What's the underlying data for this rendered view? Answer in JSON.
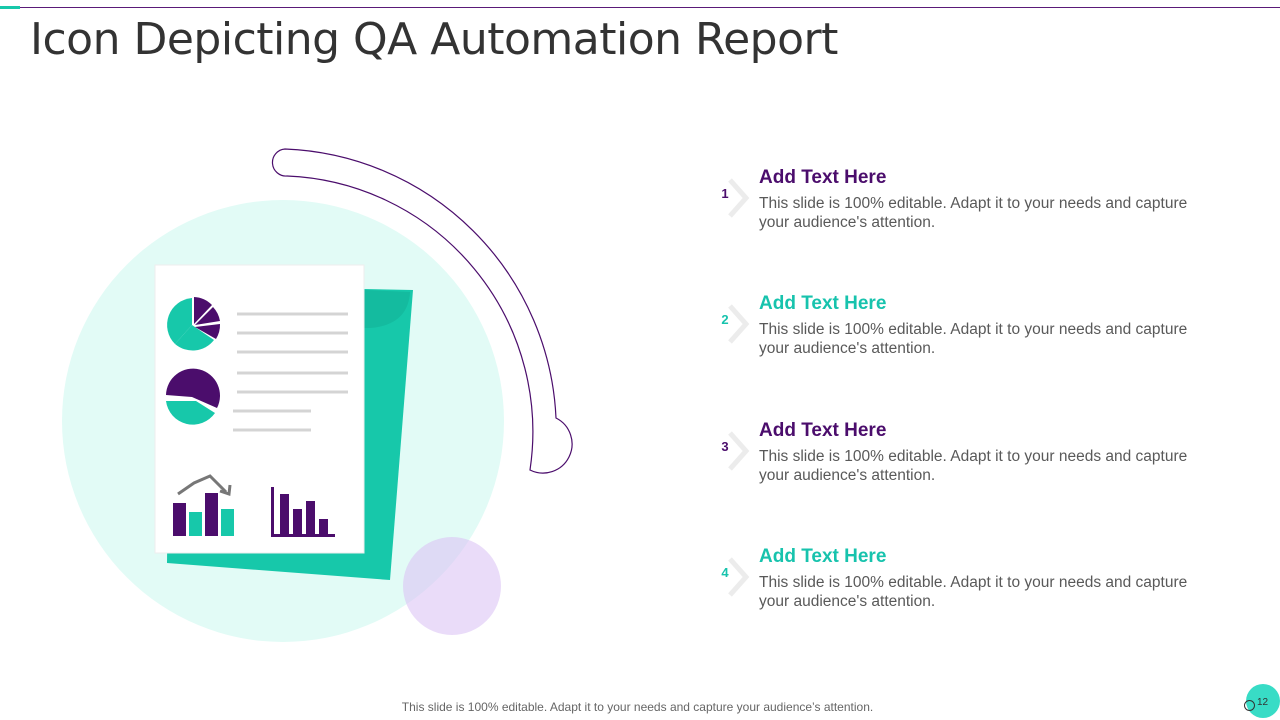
{
  "slide": {
    "title": "Icon Depicting QA Automation Report",
    "footer_note": "This slide is 100% editable. Adapt it to your needs and capture your audience’s attention.",
    "page_number": "12"
  },
  "colors": {
    "purple": "#4b0d6c",
    "teal": "#17c8aa",
    "light_teal_circle": "#e2fbf6",
    "light_purple_circle": "#e8d9f8"
  },
  "items": [
    {
      "number": "1",
      "heading": "Add Text Here",
      "text": "This slide is 100% editable. Adapt it to your needs and capture your audience's attention.",
      "color": "purple"
    },
    {
      "number": "2",
      "heading": "Add Text Here",
      "text": "This slide is 100% editable. Adapt it to your needs and capture your audience's attention.",
      "color": "teal"
    },
    {
      "number": "3",
      "heading": "Add Text Here",
      "text": "This slide is 100% editable. Adapt it to your needs and capture your audience's attention.",
      "color": "purple"
    },
    {
      "number": "4",
      "heading": "Add Text Here",
      "text": "This slide is 100% editable. Adapt it to your needs and capture your audience's attention.",
      "color": "teal"
    }
  ],
  "icons": [
    "report-document-icon",
    "pie-chart-icon",
    "bar-chart-icon",
    "trend-arrow-icon",
    "chevron-right-icon"
  ]
}
